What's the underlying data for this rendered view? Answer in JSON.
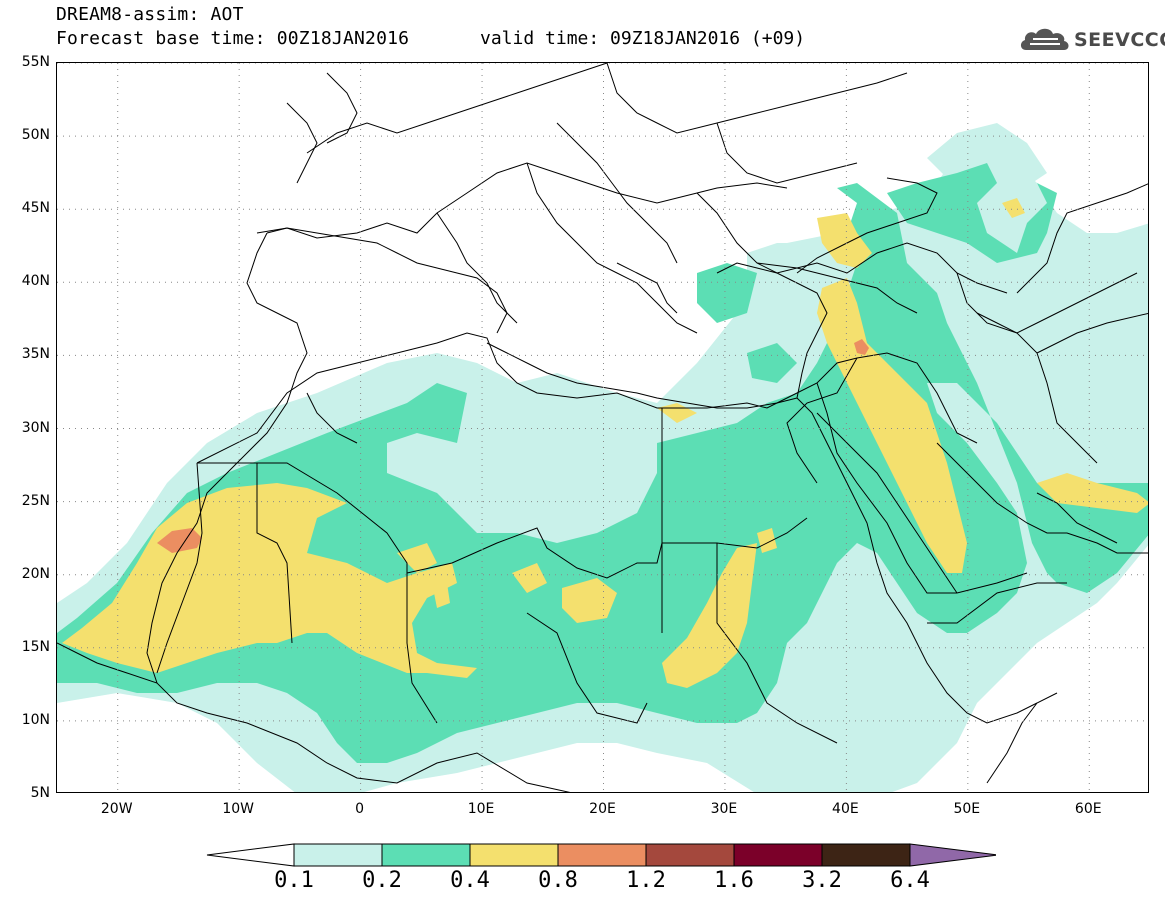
{
  "header": {
    "title": "DREAM8-assim: AOT",
    "base_time": "Forecast base time: 00Z18JAN2016",
    "valid_time": "valid time: 09Z18JAN2016 (+09)"
  },
  "logo": {
    "text": "SEEVCCC",
    "icon": "cloud-icon"
  },
  "map": {
    "lon_range": [
      -25,
      65
    ],
    "lat_range": [
      5,
      55
    ],
    "lat_labels": [
      "55N",
      "50N",
      "45N",
      "40N",
      "35N",
      "30N",
      "25N",
      "20N",
      "15N",
      "10N",
      "5N"
    ],
    "lat_values": [
      55,
      50,
      45,
      40,
      35,
      30,
      25,
      20,
      15,
      10,
      5
    ],
    "lon_labels": [
      "20W",
      "10W",
      "0",
      "10E",
      "20E",
      "30E",
      "40E",
      "50E",
      "60E"
    ],
    "lon_values": [
      -20,
      -10,
      0,
      10,
      20,
      30,
      40,
      50,
      60
    ],
    "grid": "dotted"
  },
  "colorbar": {
    "labels": [
      "0.1",
      "0.2",
      "0.4",
      "0.8",
      "1.2",
      "1.6",
      "3.2",
      "6.4"
    ],
    "colors": [
      "#ffffff",
      "#c9f1ea",
      "#5cdeb4",
      "#f4e06e",
      "#eb8e61",
      "#a4483d",
      "#7b0029",
      "#3d2415",
      "#9068a8"
    ]
  },
  "colors": {
    "level1": "#c9f1ea",
    "level2": "#5cdeb4",
    "level3": "#f4e06e",
    "level4": "#eb8e61",
    "level5": "#d46a5e"
  }
}
